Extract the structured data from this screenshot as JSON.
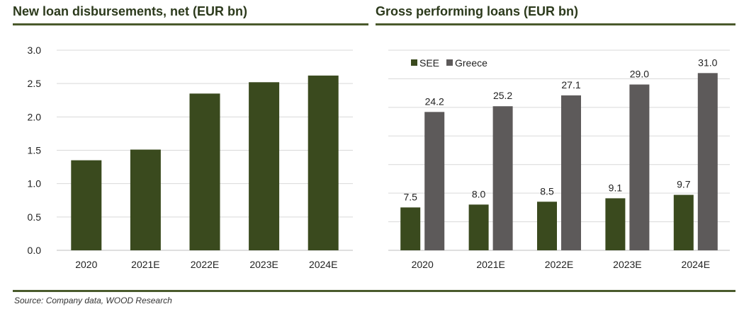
{
  "charts": {
    "left": {
      "title": "New loan disbursements, net (EUR bn)"
    },
    "right": {
      "title": "Gross performing loans (EUR bn)"
    }
  },
  "source": "Source: Company data, WOOD Research",
  "colors": {
    "see": "#3a4a1e",
    "greece": "#5d5a5a",
    "grid": "#d9d9d9",
    "rule": "#4a5a2c"
  },
  "chart_data": [
    {
      "type": "bar",
      "title": "New loan disbursements, net (EUR bn)",
      "categories": [
        "2020",
        "2021E",
        "2022E",
        "2023E",
        "2024E"
      ],
      "values": [
        1.35,
        1.51,
        2.35,
        2.52,
        2.62
      ],
      "ylim": [
        0,
        3.0
      ],
      "yticks": [
        "0.0",
        "0.5",
        "1.0",
        "1.5",
        "2.0",
        "2.5",
        "3.0"
      ],
      "grid": true
    },
    {
      "type": "bar",
      "title": "Gross performing loans (EUR bn)",
      "categories": [
        "2020",
        "2021E",
        "2022E",
        "2023E",
        "2024E"
      ],
      "series": [
        {
          "name": "SEE",
          "values": [
            7.5,
            8.0,
            8.5,
            9.1,
            9.7
          ],
          "labels": [
            "7.5",
            "8.0",
            "8.5",
            "9.1",
            "9.7"
          ]
        },
        {
          "name": "Greece",
          "values": [
            24.2,
            25.2,
            27.1,
            29.0,
            31.0
          ],
          "labels": [
            "24.2",
            "25.2",
            "27.1",
            "29.0",
            "31.0"
          ]
        }
      ],
      "ylim": [
        0,
        35
      ],
      "legend": "top-left",
      "grid": true
    }
  ]
}
